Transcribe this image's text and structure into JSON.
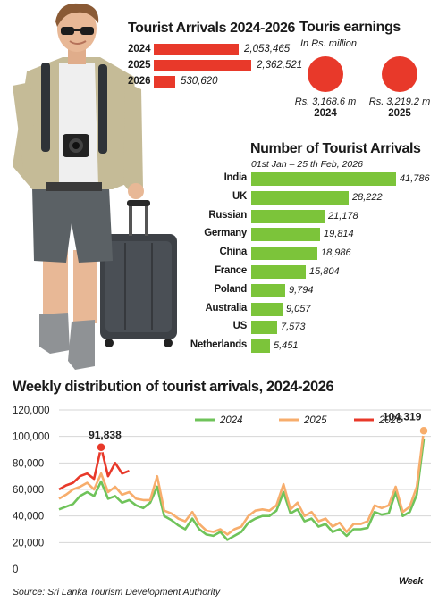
{
  "totals": {
    "title": "Tourist Arrivals 2024-2026",
    "rows": [
      {
        "year": "2024",
        "value": 2053465,
        "label": "2,053,465"
      },
      {
        "year": "2025",
        "value": 2362521,
        "label": "2,362,521"
      },
      {
        "year": "2026",
        "value": 530620,
        "label": "530,620"
      }
    ]
  },
  "earnings": {
    "title": "Touris earnings",
    "subtitle": "In Rs. million",
    "items": [
      {
        "amount": "Rs. 3,168.6 m",
        "year": "2024"
      },
      {
        "amount": "Rs. 3,219.2 m",
        "year": "2025"
      }
    ]
  },
  "countries": {
    "title": "Number of Tourist Arrivals",
    "subtitle": "01st Jan – 25 th Feb, 2026",
    "rows": [
      {
        "name": "India",
        "value": 41786,
        "label": "41,786"
      },
      {
        "name": "UK",
        "value": 28222,
        "label": "28,222"
      },
      {
        "name": "Russian",
        "value": 21178,
        "label": "21,178"
      },
      {
        "name": "Germany",
        "value": 19814,
        "label": "19,814"
      },
      {
        "name": "China",
        "value": 18986,
        "label": "18,986"
      },
      {
        "name": "France",
        "value": 15804,
        "label": "15,804"
      },
      {
        "name": "Poland",
        "value": 9794,
        "label": "9,794"
      },
      {
        "name": "Australia",
        "value": 9057,
        "label": "9,057"
      },
      {
        "name": "US",
        "value": 7573,
        "label": "7,573"
      },
      {
        "name": "Netherlands",
        "value": 5451,
        "label": "5,451"
      }
    ]
  },
  "weekly": {
    "title": "Weekly distribution of tourist arrivals, 2024-2026",
    "xlabel": "Week",
    "source": "Source: Sri Lanka Tourism Development Authority"
  },
  "colors": {
    "red": "#e8392a",
    "green": "#8cc63f",
    "lime": "#7cc43a",
    "orange": "#f5b27a",
    "line2024": "#6fc35a",
    "line2025": "#f7ad6c",
    "line2026": "#e8392a",
    "grid": "#d6d6d6"
  },
  "illustration": {
    "name": "tourist-with-suitcase-photo"
  },
  "chart_data": [
    {
      "type": "bar",
      "title": "Tourist Arrivals 2024-2026",
      "orientation": "horizontal",
      "categories": [
        "2024",
        "2025",
        "2026"
      ],
      "values": [
        2053465,
        2362521,
        530620
      ]
    },
    {
      "type": "scatter",
      "title": "Touris earnings",
      "subtitle": "In Rs. million",
      "categories": [
        "2024",
        "2025"
      ],
      "values": [
        3168.6,
        3219.2
      ]
    },
    {
      "type": "bar",
      "title": "Number of Tourist Arrivals",
      "subtitle": "01st Jan – 25 th Feb, 2026",
      "orientation": "horizontal",
      "categories": [
        "India",
        "UK",
        "Russian",
        "Germany",
        "China",
        "France",
        "Poland",
        "Australia",
        "US",
        "Netherlands"
      ],
      "values": [
        41786,
        28222,
        21178,
        19814,
        18986,
        15804,
        9794,
        9057,
        7573,
        5451
      ]
    },
    {
      "type": "line",
      "title": "Weekly distribution of tourist arrivals, 2024-2026",
      "xlabel": "Week",
      "ylabel": "",
      "ylim": [
        0,
        120000
      ],
      "yticks": [
        0,
        20000,
        40000,
        60000,
        80000,
        100000,
        120000
      ],
      "ytick_labels": [
        "0",
        "20,000",
        "40,000",
        "60,000",
        "80,000",
        "100,000",
        "120,000"
      ],
      "grid": true,
      "legend": "top",
      "annotations": [
        {
          "series": "2026",
          "week": 7,
          "value": 91838,
          "label": "91,838"
        },
        {
          "series": "2025",
          "week": 53,
          "value": 104319,
          "label": "104,319"
        }
      ],
      "series": [
        {
          "name": "2024",
          "x": [
            1,
            2,
            3,
            4,
            5,
            6,
            7,
            8,
            9,
            10,
            11,
            12,
            13,
            14,
            15,
            16,
            17,
            18,
            19,
            20,
            21,
            22,
            23,
            24,
            25,
            26,
            27,
            28,
            29,
            30,
            31,
            32,
            33,
            34,
            35,
            36,
            37,
            38,
            39,
            40,
            41,
            42,
            43,
            44,
            45,
            46,
            47,
            48,
            49,
            50,
            51,
            52,
            53
          ],
          "values": [
            45000,
            47000,
            49000,
            55000,
            58000,
            55000,
            66000,
            53000,
            55000,
            50000,
            52000,
            48000,
            46000,
            50000,
            62000,
            40000,
            37000,
            33000,
            30000,
            38000,
            30000,
            26000,
            25000,
            28000,
            22000,
            25000,
            28000,
            35000,
            38000,
            40000,
            40000,
            44000,
            58000,
            42000,
            45000,
            36000,
            38000,
            32000,
            34000,
            28000,
            30000,
            25000,
            30000,
            30000,
            31000,
            43000,
            41000,
            42000,
            58000,
            40000,
            43000,
            56000,
            98000
          ]
        },
        {
          "name": "2025",
          "x": [
            1,
            2,
            3,
            4,
            5,
            6,
            7,
            8,
            9,
            10,
            11,
            12,
            13,
            14,
            15,
            16,
            17,
            18,
            19,
            20,
            21,
            22,
            23,
            24,
            25,
            26,
            27,
            28,
            29,
            30,
            31,
            32,
            33,
            34,
            35,
            36,
            37,
            38,
            39,
            40,
            41,
            42,
            43,
            44,
            45,
            46,
            47,
            48,
            49,
            50,
            51,
            52,
            53
          ],
          "values": [
            53000,
            56000,
            60000,
            62000,
            65000,
            60000,
            72000,
            58000,
            62000,
            56000,
            58000,
            53000,
            52000,
            52000,
            70000,
            44000,
            42000,
            38000,
            36000,
            43000,
            34000,
            29000,
            28000,
            30000,
            26000,
            30000,
            32000,
            40000,
            44000,
            45000,
            44000,
            48000,
            64000,
            45000,
            50000,
            40000,
            43000,
            36000,
            38000,
            32000,
            35000,
            28000,
            34000,
            34000,
            36000,
            48000,
            46000,
            48000,
            62000,
            43000,
            47000,
            62000,
            104319
          ]
        },
        {
          "name": "2026",
          "x": [
            1,
            2,
            3,
            4,
            5,
            6,
            7,
            8,
            9,
            10,
            11
          ],
          "values": [
            60000,
            63000,
            65000,
            70000,
            72000,
            68000,
            91838,
            70000,
            80000,
            72000,
            74000
          ]
        }
      ]
    }
  ]
}
